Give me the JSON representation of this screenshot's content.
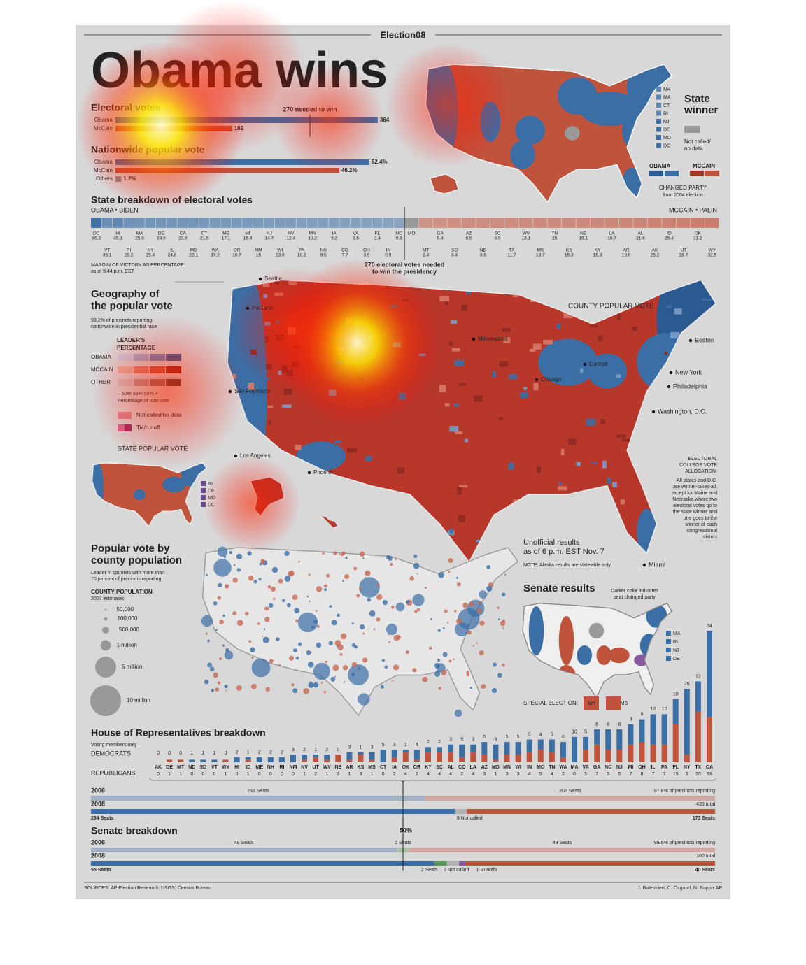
{
  "header": {
    "brand": "Election08",
    "title": "Obama wins"
  },
  "chart_data": [
    {
      "type": "hbar",
      "title": "Electoral votes",
      "categories": [
        "Obama",
        "McCain"
      ],
      "values": [
        364,
        162
      ],
      "colors": [
        "#3b6ea5",
        "#c0533c"
      ],
      "annotation": "270 needed to win",
      "threshold": 270,
      "xlim": [
        0,
        538
      ]
    },
    {
      "type": "hbar",
      "title": "Nationwide popular vote",
      "categories": [
        "Obama",
        "McCain",
        "Others"
      ],
      "values": [
        52.4,
        46.2,
        1.2
      ],
      "value_labels": [
        "52.4%",
        "46.2%",
        "1.2%"
      ],
      "colors": [
        "#3b6ea5",
        "#c0533c",
        "#8a8a8a"
      ],
      "xlim": [
        0,
        80
      ]
    },
    {
      "type": "strip",
      "title": "State breakdown of electoral votes",
      "series": [
        {
          "name": "OBAMA • BIDEN",
          "color": "#3b6ea5",
          "categories": [
            "DC",
            "VT",
            "HI",
            "RI",
            "MA",
            "NY",
            "DE",
            "IL",
            "CA",
            "MD",
            "CT",
            "WA",
            "ME",
            "OR",
            "MI",
            "NM",
            "NJ",
            "WI",
            "NV",
            "PA",
            "MN",
            "NH",
            "IA",
            "CO",
            "VA",
            "OH",
            "FL",
            "IN",
            "NC"
          ],
          "values": [
            86.3,
            35.1,
            45.1,
            28.2,
            25.8,
            25.4,
            24.9,
            24.6,
            23.9,
            23.1,
            21.5,
            17.2,
            17.1,
            16.7,
            16.4,
            15,
            14.7,
            13.9,
            12.4,
            10.2,
            10.2,
            9.5,
            9.2,
            7.7,
            5.6,
            3.9,
            2.4,
            0.9,
            0.3
          ]
        },
        {
          "name": "MCCAIN • PALIN",
          "color": "#c0533c",
          "categories": [
            "MO",
            "MT",
            "GA",
            "SD",
            "AZ",
            "ND",
            "SC",
            "TX",
            "WV",
            "MS",
            "TN",
            "KS",
            "NE",
            "KY",
            "LA",
            "AR",
            "AL",
            "AK",
            "ID",
            "UT",
            "OK",
            "WY"
          ],
          "values": [
            null,
            2.4,
            5.4,
            8.4,
            8.5,
            8.6,
            8.9,
            11.7,
            13.1,
            13.7,
            15,
            15.3,
            16.1,
            16.3,
            18.7,
            19.9,
            21.6,
            25.2,
            25.4,
            28.7,
            31.2,
            32.5
          ]
        }
      ],
      "annotation": [
        "270 electoral votes needed",
        "to win the presidency"
      ],
      "note": [
        "MARGIN OF VICTORY AS PERCENTAGE",
        "as of 5:44 p.m. EST"
      ]
    },
    {
      "type": "stacked-column",
      "title": "House of Representatives breakdown",
      "subtitle": "Voting members only",
      "categories": [
        "AK",
        "DE",
        "MT",
        "ND",
        "SD",
        "VT",
        "WY",
        "HI",
        "ID",
        "ME",
        "NH",
        "RI",
        "NM",
        "NV",
        "UT",
        "WV",
        "NE",
        "AR",
        "KS",
        "MS",
        "CT",
        "IA",
        "OK",
        "OR",
        "KY",
        "SC",
        "AL",
        "CO",
        "LA",
        "AZ",
        "MD",
        "MN",
        "WI",
        "IN",
        "MO",
        "TN",
        "WA",
        "MA",
        "VA",
        "GA",
        "NC",
        "NJ",
        "MI",
        "OH",
        "IL",
        "PA",
        "FL",
        "NY",
        "TX",
        "CA"
      ],
      "series": [
        {
          "name": "REPUBLICANS",
          "color": "#c0533c",
          "values": [
            0,
            1,
            1,
            0,
            0,
            0,
            1,
            0,
            1,
            0,
            0,
            0,
            0,
            1,
            2,
            1,
            3,
            1,
            3,
            1,
            0,
            2,
            4,
            1,
            4,
            4,
            4,
            2,
            4,
            3,
            1,
            3,
            3,
            4,
            5,
            4,
            2,
            0,
            5,
            7,
            5,
            5,
            7,
            8,
            7,
            7,
            15,
            3,
            20,
            18
          ]
        },
        {
          "name": "DEMOCRATS",
          "color": "#3b6ea5",
          "values": [
            0,
            0,
            0,
            1,
            1,
            1,
            0,
            2,
            1,
            2,
            2,
            2,
            3,
            2,
            1,
            2,
            0,
            3,
            1,
            3,
            5,
            3,
            1,
            4,
            2,
            2,
            3,
            5,
            3,
            5,
            6,
            5,
            5,
            5,
            4,
            5,
            6,
            10,
            5,
            6,
            8,
            8,
            8,
            9,
            12,
            12,
            10,
            26,
            12,
            34
          ]
        }
      ],
      "ylim": [
        0,
        54
      ]
    },
    {
      "type": "seat-bar",
      "categories": [
        "2006",
        "2008"
      ],
      "series": [
        {
          "color": "#3b6ea5",
          "values": [
            233,
            254
          ],
          "value_labels": [
            "233 Seats",
            "254 Seats"
          ]
        },
        {
          "color": "#b0b0b0",
          "values": [
            null,
            8
          ],
          "value_labels": [
            null,
            "8 Not called"
          ]
        },
        {
          "color": "#c0533c",
          "values": [
            202,
            173
          ],
          "value_labels": [
            "202 Seats",
            "173 Seats"
          ]
        }
      ],
      "notes": [
        "97.8% of precincts reporting",
        "435 total"
      ],
      "xlim": [
        0,
        435
      ]
    },
    {
      "type": "seat-bar",
      "title": "Senate breakdown",
      "categories": [
        "2006",
        "2008"
      ],
      "series": [
        {
          "color": "#3b6ea5",
          "values": [
            49,
            55
          ],
          "value_labels": [
            "49 Seats",
            "55 Seats"
          ]
        },
        {
          "color": "#5a9a5a",
          "values": [
            2,
            2
          ],
          "value_labels": [
            "2 Seats",
            "2 Seats"
          ]
        },
        {
          "color": "#b0b0b0",
          "values": [
            null,
            2
          ],
          "value_labels": [
            null,
            "2 Not called"
          ]
        },
        {
          "color": "#8a5aa0",
          "values": [
            null,
            1
          ],
          "value_labels": [
            null,
            "1 Runoffs"
          ]
        },
        {
          "color": "#c0533c",
          "values": [
            49,
            40
          ],
          "value_labels": [
            "49 Seats",
            "40 Seats"
          ]
        }
      ],
      "notes": [
        "99.6% of precincts reporting",
        "100 total"
      ],
      "midpoint_label": "50%",
      "xlim": [
        0,
        100
      ]
    }
  ],
  "state_map": {
    "title": [
      "State",
      "winner"
    ],
    "no_data": [
      "Not called/",
      "no data"
    ],
    "obama": "OBAMA",
    "mccain": "MCCAIN",
    "changed": "CHANGED PARTY",
    "changed_note": "from 2004 election",
    "small_states": [
      "NH",
      "MA",
      "CT",
      "RI",
      "NJ",
      "DE",
      "MD",
      "DC"
    ]
  },
  "county_map": {
    "title": [
      "Geography of",
      "the popular vote"
    ],
    "note": [
      "98.2% of precincts reporting",
      "nationwide in presidential race"
    ],
    "legend_title": [
      "LEADER'S",
      "PERCENTAGE"
    ],
    "rows": [
      "OBAMA",
      "MCCAIN",
      "OTHER"
    ],
    "scale": "– 50% 55% 60% +",
    "scale_note": "Percentage of total vote",
    "no_data": "Not called/no data",
    "tie": "Tie/runoff",
    "state_vote": "STATE POPULAR VOTE",
    "state_vote_small": [
      "RI",
      "DE",
      "MD",
      "DC"
    ],
    "label": "COUNTY POPULAR VOTE",
    "cities": [
      "Seattle",
      "Portland",
      "San Francisco",
      "Los Angeles",
      "Phoenix",
      "Minneapolis",
      "Chicago",
      "Detroit",
      "Boston",
      "New York",
      "Philadelphia",
      "Washington, D.C.",
      "Miami"
    ],
    "allocation_title": [
      "ELECTORAL",
      "COLLEGE VOTE",
      "ALLOCATION:"
    ],
    "allocation": [
      "All states and D.C.",
      "are winner-takes-all,",
      "except for Maine and",
      "Nebraska where two",
      "electoral votes go to",
      "the state winner and",
      "one goes to the",
      "winner of each",
      "congressional",
      "district"
    ],
    "unofficial": [
      "Unofficial results",
      "as of 6 p.m. EST Nov. 7"
    ],
    "alaska": "NOTE: Alaska results are statewide only"
  },
  "bubble_map": {
    "title": [
      "Popular vote by",
      "county population"
    ],
    "note": [
      "Leader in counties with more than",
      "70 percent of precincts reporting"
    ],
    "legend_title": "COUNTY POPULATION",
    "legend_note": "2007 estimates",
    "sizes": [
      "50,000",
      "100,000",
      "500,000",
      "1 million",
      "5 million",
      "10 million"
    ]
  },
  "senate_map": {
    "title": "Senate results",
    "note": [
      "Darker color indicates",
      "seat changed party"
    ],
    "special": "SPECIAL ELECTION:",
    "special_states": [
      "WY",
      "MS"
    ],
    "small_states": [
      "MA",
      "RI",
      "NJ",
      "DE"
    ]
  },
  "footer": {
    "sources": "SOURCES: AP Election Research; USGS; Census Bureau",
    "credit": "J. Balestrieri, C. Osgood, N. Rapp • AP"
  }
}
